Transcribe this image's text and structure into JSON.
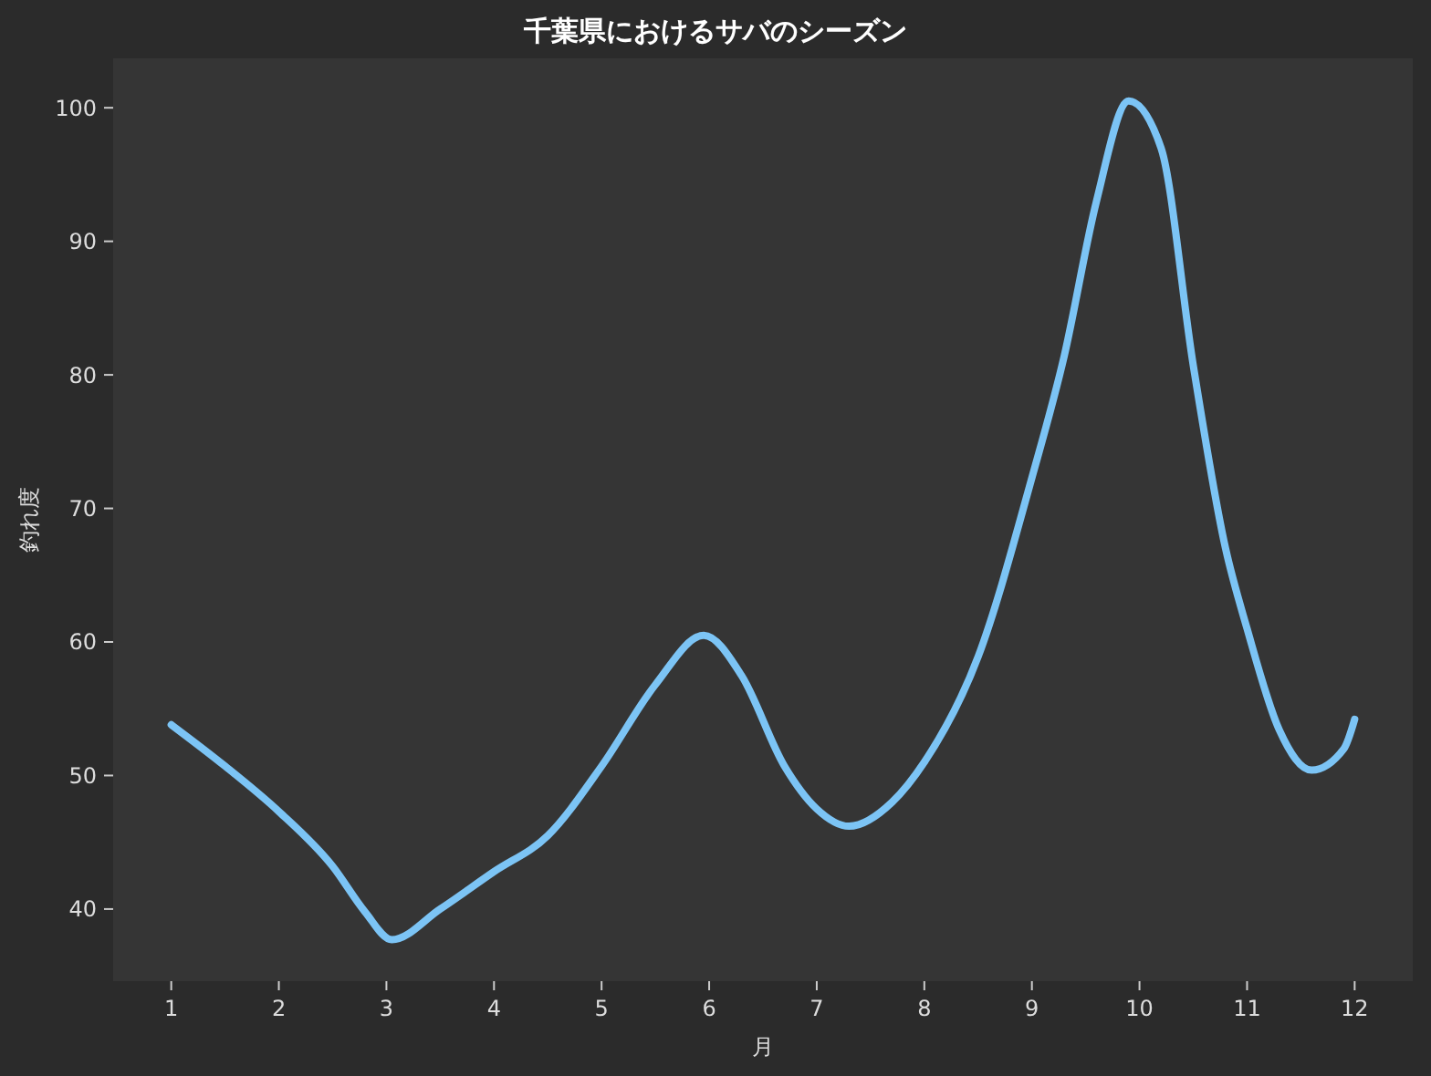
{
  "chart_data": {
    "type": "line",
    "title": "千葉県におけるサバのシーズン",
    "xlabel": "月",
    "ylabel": "釣れ度",
    "xlim": [
      0.46,
      12.54
    ],
    "xticks": [
      1,
      2,
      3,
      4,
      5,
      6,
      7,
      8,
      9,
      10,
      11,
      12
    ],
    "ylim": [
      34.6,
      103.7
    ],
    "yticks": [
      40,
      50,
      60,
      70,
      80,
      90,
      100
    ],
    "grid": false,
    "marker": "none",
    "line_style": "solid",
    "x": [
      1,
      1.5,
      2,
      2.5,
      2.8,
      3.05,
      3.5,
      4,
      4.5,
      5,
      5.5,
      5.95,
      6.3,
      6.7,
      7,
      7.3,
      7.7,
      8,
      8.5,
      9,
      9.3,
      9.6,
      9.9,
      10.2,
      10.5,
      10.8,
      11,
      11.3,
      11.6,
      11.9,
      12
    ],
    "series": [
      {
        "color": "#7cc4f5",
        "values": [
          53.8,
          50.7,
          47.3,
          43.2,
          39.8,
          37.7,
          40,
          42.8,
          45.5,
          50.7,
          56.8,
          60.5,
          57.5,
          50.7,
          47.5,
          46.2,
          48,
          51,
          58.9,
          72.3,
          81.4,
          93,
          100.5,
          97,
          80.7,
          67,
          61,
          53.4,
          50.4,
          52,
          54.2
        ]
      }
    ]
  }
}
